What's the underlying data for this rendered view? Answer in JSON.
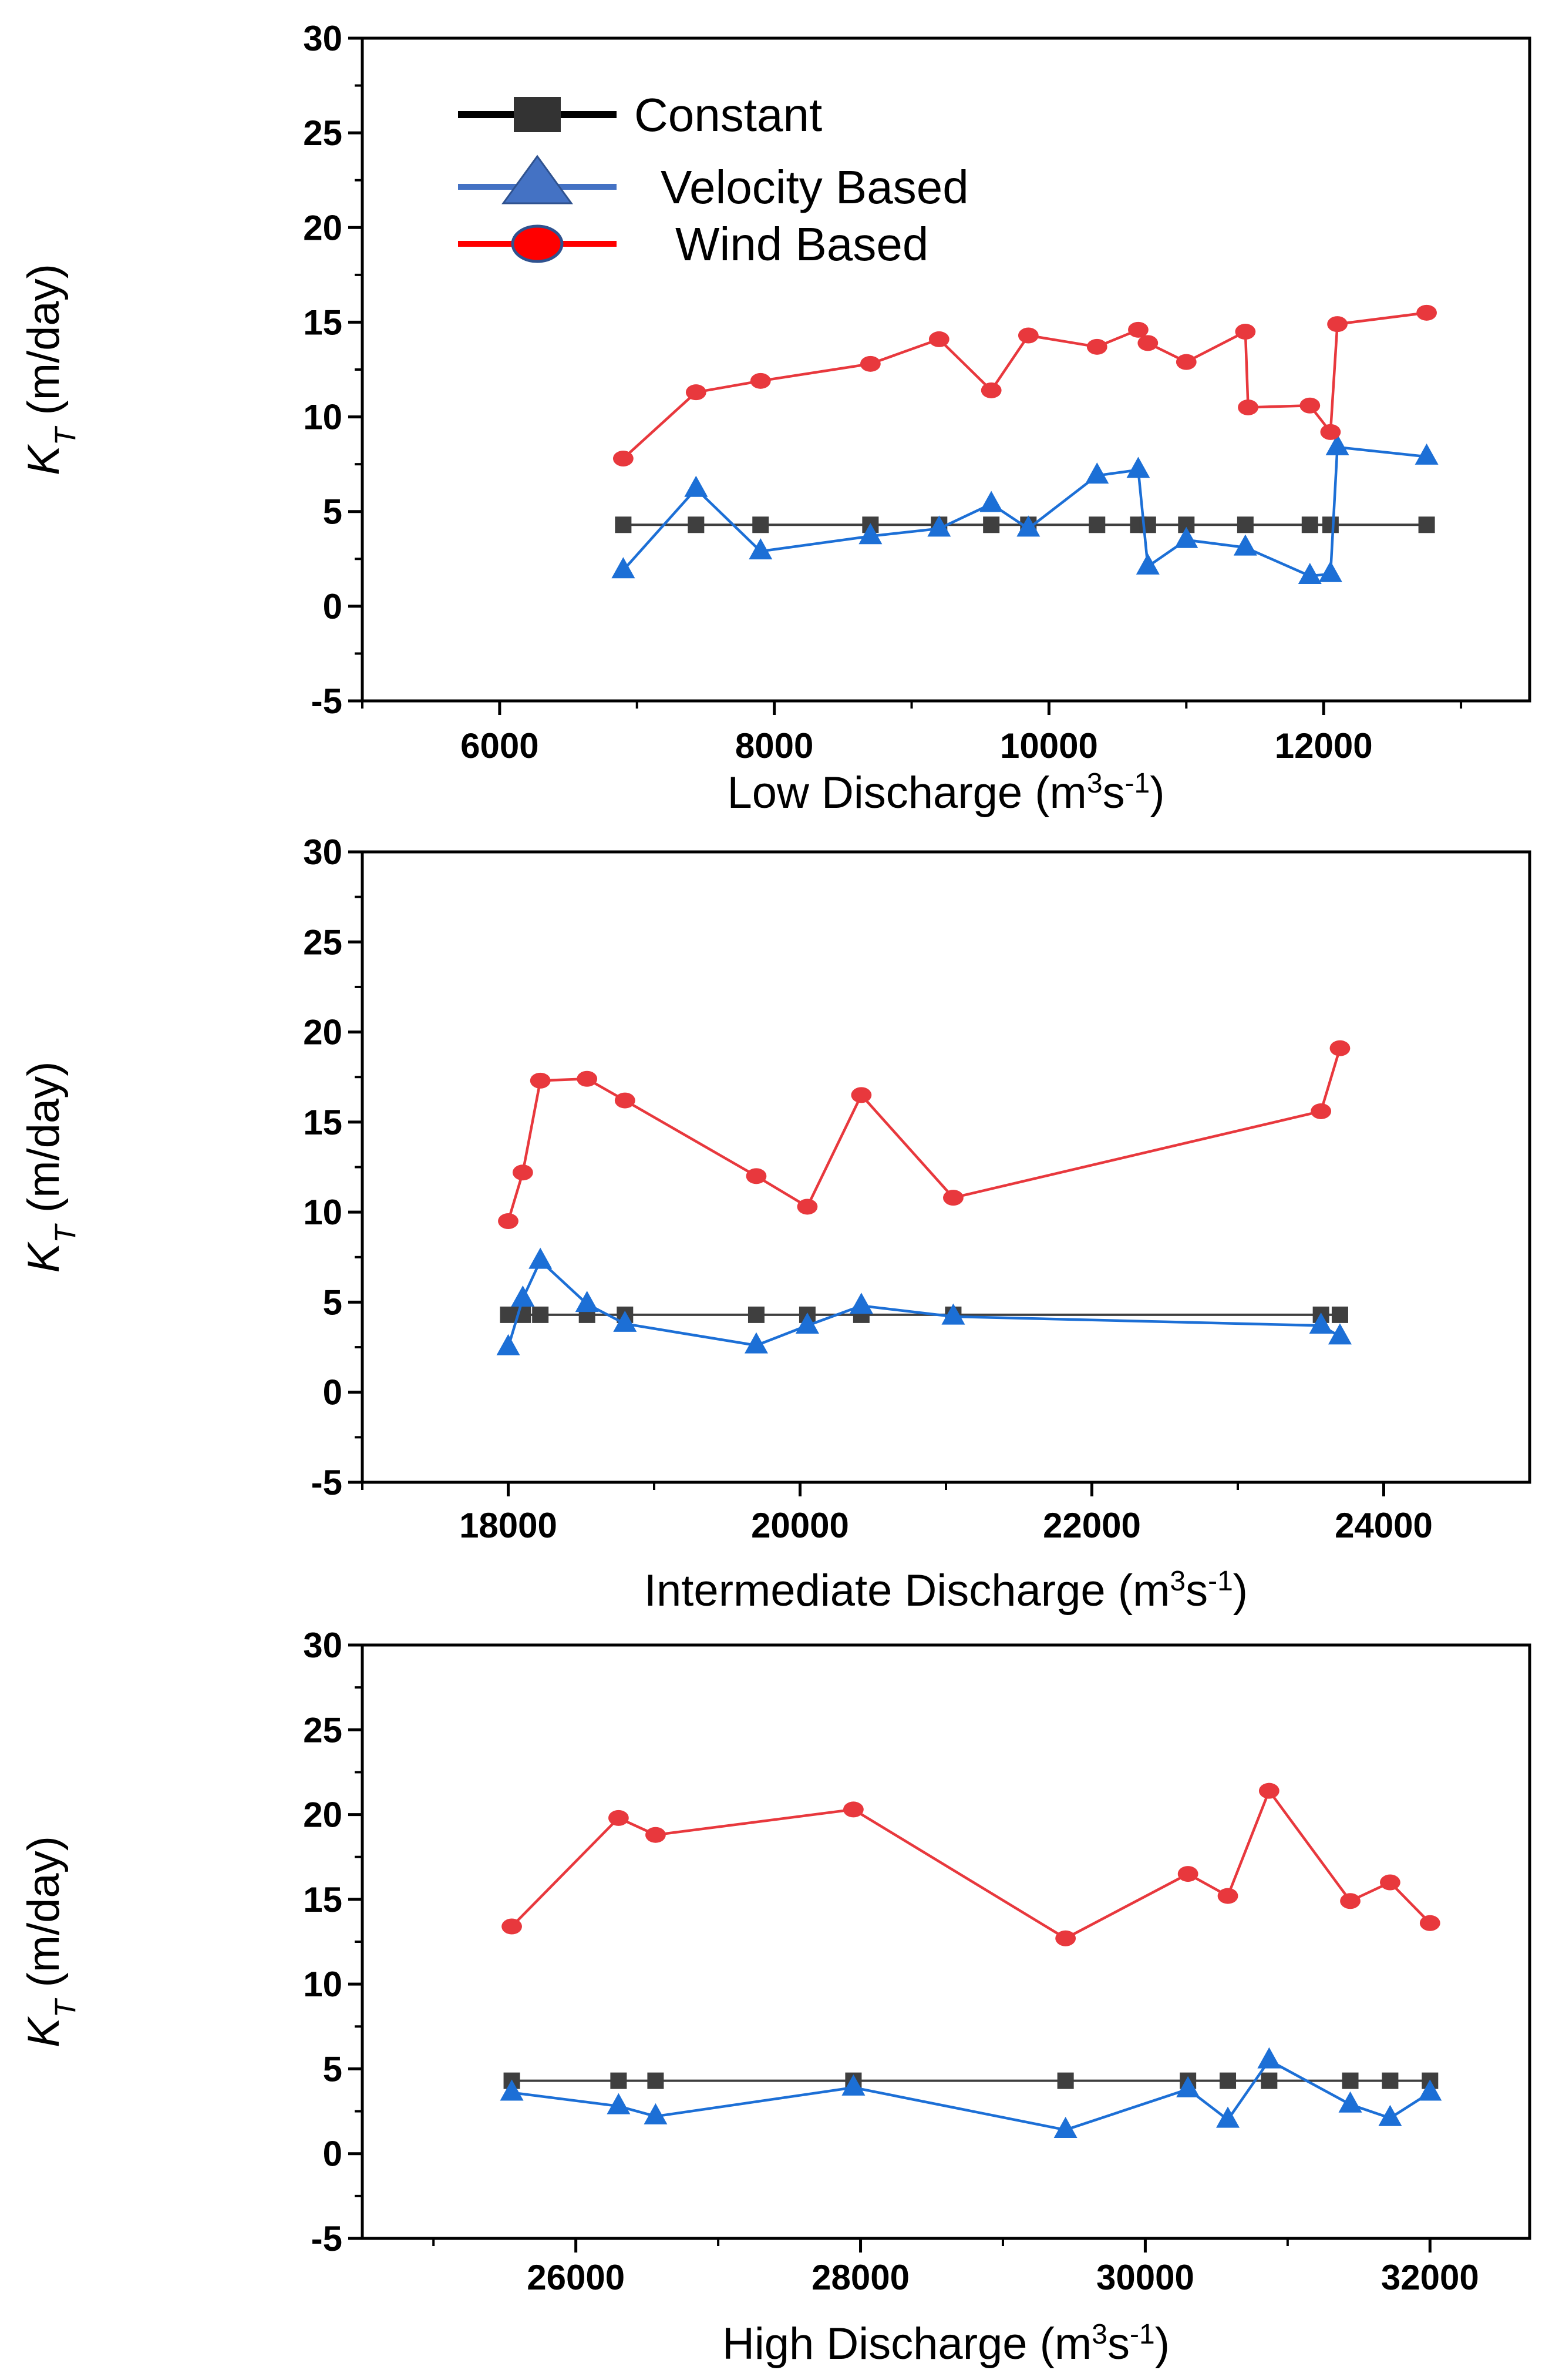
{
  "chart_data": [
    {
      "type": "line",
      "panel": "low",
      "xlabel": "Low Discharge (m³s⁻¹)",
      "xlabel_main": "Low Discharge (m",
      "xlabel_sup1": "3",
      "xlabel_mid": "s",
      "xlabel_sup2": "-1",
      "xlabel_end": ")",
      "ylabel": "KT (m/day)",
      "ylabel_main": "K",
      "ylabel_sub": "T",
      "ylabel_unit": " (m/day)",
      "xlim": [
        5000,
        13500
      ],
      "ylim": [
        -5,
        30
      ],
      "xticks": [
        6000,
        8000,
        10000,
        12000
      ],
      "xtick_labels": [
        "6000",
        "8000",
        "10000",
        "12000"
      ],
      "xminor": 1000,
      "yticks": [
        -5,
        0,
        5,
        10,
        15,
        20,
        25,
        30
      ],
      "ytick_labels": [
        "-5",
        "0",
        "5",
        "10",
        "15",
        "20",
        "25",
        "30"
      ],
      "yminor": 2.5,
      "legend": [
        {
          "name": "Constant",
          "color": "#000000",
          "marker": "square"
        },
        {
          "name": "Velocity Based",
          "color": "#4472c4",
          "marker": "triangle"
        },
        {
          "name": "Wind Based",
          "color": "#ff0000",
          "marker": "circle"
        }
      ],
      "series": [
        {
          "name": "Constant",
          "color": "#3f3f3f",
          "marker": "square",
          "x": [
            6900,
            7430,
            7900,
            8700,
            9200,
            9580,
            9850,
            10350,
            10650,
            10720,
            11000,
            11430,
            11900,
            12050,
            12750
          ],
          "y": [
            4.3,
            4.3,
            4.3,
            4.3,
            4.3,
            4.3,
            4.3,
            4.3,
            4.3,
            4.3,
            4.3,
            4.3,
            4.3,
            4.3,
            4.3
          ]
        },
        {
          "name": "Velocity Based",
          "color": "#1c6fd6",
          "marker": "triangle",
          "x": [
            6900,
            7430,
            7900,
            8700,
            9200,
            9580,
            9850,
            10350,
            10650,
            10720,
            11000,
            11430,
            11900,
            12050,
            12100,
            12750
          ],
          "y": [
            1.9,
            6.2,
            2.9,
            3.7,
            4.1,
            5.4,
            4.1,
            6.9,
            7.2,
            2.1,
            3.5,
            3.1,
            1.6,
            1.7,
            8.4,
            7.9
          ]
        },
        {
          "name": "Wind Based",
          "color": "#e8383d",
          "marker": "circle",
          "x": [
            6900,
            7430,
            7900,
            8700,
            9200,
            9580,
            9850,
            10350,
            10650,
            10720,
            11000,
            11430,
            11450,
            11900,
            12050,
            12100,
            12750
          ],
          "y": [
            7.8,
            11.3,
            11.9,
            12.8,
            14.1,
            11.4,
            14.3,
            13.7,
            14.6,
            13.9,
            12.9,
            14.5,
            10.5,
            10.6,
            9.2,
            14.9,
            15.5
          ]
        }
      ]
    },
    {
      "type": "line",
      "panel": "intermediate",
      "xlabel": "Intermediate Discharge (m³s⁻¹)",
      "xlabel_main": "Intermediate Discharge (m",
      "xlabel_sup1": "3",
      "xlabel_mid": "s",
      "xlabel_sup2": "-1",
      "xlabel_end": ")",
      "ylabel": "KT (m/day)",
      "ylabel_main": "K",
      "ylabel_sub": "T",
      "ylabel_unit": " (m/day)",
      "xlim": [
        17000,
        25000
      ],
      "ylim": [
        -5,
        30
      ],
      "xticks": [
        18000,
        20000,
        22000,
        24000
      ],
      "xtick_labels": [
        "18000",
        "20000",
        "22000",
        "24000"
      ],
      "xminor": 1000,
      "yticks": [
        -5,
        0,
        5,
        10,
        15,
        20,
        25,
        30
      ],
      "ytick_labels": [
        "-5",
        "0",
        "5",
        "10",
        "15",
        "20",
        "25",
        "30"
      ],
      "yminor": 2.5,
      "series": [
        {
          "name": "Constant",
          "color": "#3f3f3f",
          "marker": "square",
          "x": [
            18000,
            18100,
            18220,
            18540,
            18800,
            19700,
            20050,
            20420,
            21050,
            23570,
            23700
          ],
          "y": [
            4.3,
            4.3,
            4.3,
            4.3,
            4.3,
            4.3,
            4.3,
            4.3,
            4.3,
            4.3,
            4.3
          ]
        },
        {
          "name": "Velocity Based",
          "color": "#1c6fd6",
          "marker": "triangle",
          "x": [
            18000,
            18100,
            18220,
            18540,
            18800,
            19700,
            20050,
            20420,
            21050,
            23570,
            23700
          ],
          "y": [
            2.5,
            5.2,
            7.3,
            4.9,
            3.8,
            2.6,
            3.7,
            4.8,
            4.2,
            3.7,
            3.1
          ]
        },
        {
          "name": "Wind Based",
          "color": "#e8383d",
          "marker": "circle",
          "x": [
            18000,
            18100,
            18220,
            18540,
            18800,
            19700,
            20050,
            20420,
            21050,
            23570,
            23700
          ],
          "y": [
            9.5,
            12.2,
            17.3,
            17.4,
            16.2,
            12.0,
            10.3,
            16.5,
            10.8,
            15.6,
            19.1
          ]
        }
      ]
    },
    {
      "type": "line",
      "panel": "high",
      "xlabel": "High Discharge (m³s⁻¹)",
      "xlabel_main": "High Discharge (m",
      "xlabel_sup1": "3",
      "xlabel_mid": "s",
      "xlabel_sup2": "-1",
      "xlabel_end": ")",
      "ylabel": "KT (m/day)",
      "ylabel_main": "K",
      "ylabel_sub": "T",
      "ylabel_unit": " (m/day)",
      "xlim": [
        24500,
        32700
      ],
      "ylim": [
        -5,
        30
      ],
      "xticks": [
        26000,
        28000,
        30000,
        32000
      ],
      "xtick_labels": [
        "26000",
        "28000",
        "30000",
        "32000"
      ],
      "xminor": 1000,
      "yticks": [
        -5,
        0,
        5,
        10,
        15,
        20,
        25,
        30
      ],
      "ytick_labels": [
        "-5",
        "0",
        "5",
        "10",
        "15",
        "20",
        "25",
        "30"
      ],
      "yminor": 2.5,
      "series": [
        {
          "name": "Constant",
          "color": "#3f3f3f",
          "marker": "square",
          "x": [
            25550,
            26300,
            26560,
            27950,
            29440,
            30300,
            30580,
            30870,
            31440,
            31720,
            32000
          ],
          "y": [
            4.3,
            4.3,
            4.3,
            4.3,
            4.3,
            4.3,
            4.3,
            4.3,
            4.3,
            4.3,
            4.3
          ]
        },
        {
          "name": "Velocity Based",
          "color": "#1c6fd6",
          "marker": "triangle",
          "x": [
            25550,
            26300,
            26560,
            27950,
            29440,
            30300,
            30580,
            30870,
            31440,
            31720,
            32000
          ],
          "y": [
            3.6,
            2.8,
            2.2,
            3.9,
            1.4,
            3.8,
            2.0,
            5.5,
            2.9,
            2.1,
            3.6
          ]
        },
        {
          "name": "Wind Based",
          "color": "#e8383d",
          "marker": "circle",
          "x": [
            25550,
            26300,
            26560,
            27950,
            29440,
            30300,
            30580,
            30870,
            31440,
            31720,
            32000
          ],
          "y": [
            13.4,
            19.8,
            18.8,
            20.3,
            12.7,
            16.5,
            15.2,
            21.4,
            14.9,
            16.0,
            13.6
          ]
        }
      ]
    }
  ]
}
